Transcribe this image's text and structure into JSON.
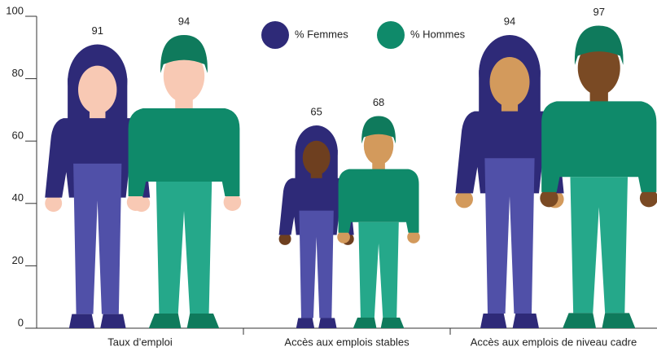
{
  "chart_data": {
    "type": "pictogram",
    "categories": [
      "Taux d’emploi",
      "Accès aux emplois stables",
      "Accès aux emplois de niveau cadre"
    ],
    "series": [
      {
        "name": "% Femmes",
        "color": "#2e2a78",
        "values": [
          91,
          65,
          94
        ]
      },
      {
        "name": "% Hommes",
        "color": "#0f8a6a",
        "values": [
          94,
          68,
          97
        ]
      }
    ],
    "ylim": [
      0,
      100
    ],
    "yticks": [
      0,
      20,
      40,
      60,
      80,
      100
    ]
  }
}
